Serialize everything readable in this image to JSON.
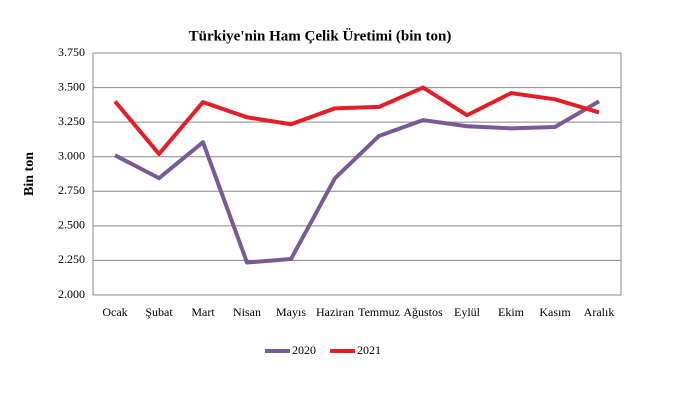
{
  "chart_data": {
    "type": "line",
    "title": "Türkiye'nin Ham Çelik Üretimi (bin ton)",
    "y_label": "Bin ton",
    "categories": [
      "Ocak",
      "Şubat",
      "Mart",
      "Nisan",
      "Mayıs",
      "Haziran",
      "Temmuz",
      "Ağustos",
      "Eylül",
      "Ekim",
      "Kasım",
      "Aralık"
    ],
    "series": [
      {
        "name": "2020",
        "color": "#7a5a96",
        "values": [
          3010,
          2845,
          3105,
          2235,
          2260,
          2845,
          3150,
          3265,
          3220,
          3205,
          3215,
          3400
        ]
      },
      {
        "name": "2021",
        "color": "#e41e26",
        "values": [
          3400,
          3020,
          3395,
          3285,
          3235,
          3350,
          3360,
          3500,
          3300,
          3460,
          3415,
          3320
        ]
      }
    ],
    "ylim": [
      2000,
      3750
    ],
    "yticks": [
      {
        "value": 2000,
        "label": "2.000"
      },
      {
        "value": 2250,
        "label": "2.250"
      },
      {
        "value": 2500,
        "label": "2.500"
      },
      {
        "value": 2750,
        "label": "2.750"
      },
      {
        "value": 3000,
        "label": "3.000"
      },
      {
        "value": 3250,
        "label": "3.250"
      },
      {
        "value": 3500,
        "label": "3.500"
      },
      {
        "value": 3750,
        "label": "3.750"
      }
    ],
    "grid": true,
    "legend": "bottom"
  }
}
